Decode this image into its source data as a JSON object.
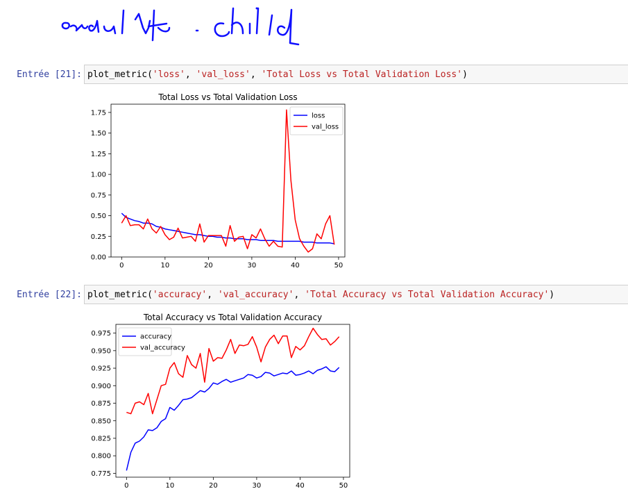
{
  "cells": [
    {
      "prompt": "Entrée [21]:",
      "code": {
        "fn": "plot_metric(",
        "args": [
          "'loss'",
          "'val_loss'",
          "'Total Loss vs Total Validation Loss'"
        ],
        "sep": ", ",
        "close": ")"
      }
    },
    {
      "prompt": "Entrée [22]:",
      "code": {
        "fn": "plot_metric(",
        "args": [
          "'accuracy'",
          "'val_accuracy'",
          "'Total Accuracy vs Total Validation Accuracy'"
        ],
        "sep": ", ",
        "close": ")"
      }
    }
  ],
  "chart_data": [
    {
      "type": "line",
      "title": "Total Loss vs Total Validation Loss",
      "xlabel": "",
      "ylabel": "",
      "xlim": [
        -2.45,
        51.45
      ],
      "ylim": [
        0.0,
        1.85
      ],
      "xticks": [
        0,
        10,
        20,
        30,
        40,
        50
      ],
      "yticks": [
        0.0,
        0.25,
        0.5,
        0.75,
        1.0,
        1.25,
        1.5,
        1.75
      ],
      "ytick_labels": [
        "0.00",
        "0.25",
        "0.50",
        "0.75",
        "1.00",
        "1.25",
        "1.50",
        "1.75"
      ],
      "legend_position": "top-right",
      "grid": false,
      "x": [
        0,
        1,
        2,
        3,
        4,
        5,
        6,
        7,
        8,
        9,
        10,
        11,
        12,
        13,
        14,
        15,
        16,
        17,
        18,
        19,
        20,
        21,
        22,
        23,
        24,
        25,
        26,
        27,
        28,
        29,
        30,
        31,
        32,
        33,
        34,
        35,
        36,
        37,
        38,
        39,
        40,
        41,
        42,
        43,
        44,
        45,
        46,
        47,
        48,
        49
      ],
      "series": [
        {
          "name": "loss",
          "color": "#0000ff",
          "values": [
            0.53,
            0.48,
            0.46,
            0.44,
            0.43,
            0.41,
            0.41,
            0.4,
            0.37,
            0.36,
            0.34,
            0.33,
            0.32,
            0.31,
            0.3,
            0.29,
            0.28,
            0.27,
            0.27,
            0.26,
            0.25,
            0.25,
            0.24,
            0.24,
            0.23,
            0.23,
            0.22,
            0.22,
            0.22,
            0.21,
            0.21,
            0.21,
            0.2,
            0.2,
            0.2,
            0.2,
            0.19,
            0.19,
            0.19,
            0.19,
            0.19,
            0.19,
            0.18,
            0.18,
            0.18,
            0.17,
            0.17,
            0.17,
            0.17,
            0.16
          ]
        },
        {
          "name": "val_loss",
          "color": "#ff0000",
          "values": [
            0.41,
            0.5,
            0.38,
            0.39,
            0.39,
            0.34,
            0.46,
            0.34,
            0.29,
            0.37,
            0.27,
            0.21,
            0.24,
            0.35,
            0.23,
            0.24,
            0.25,
            0.19,
            0.4,
            0.18,
            0.26,
            0.26,
            0.26,
            0.26,
            0.13,
            0.38,
            0.19,
            0.24,
            0.25,
            0.1,
            0.27,
            0.23,
            0.34,
            0.22,
            0.13,
            0.19,
            0.13,
            0.12,
            1.78,
            0.93,
            0.45,
            0.22,
            0.13,
            0.06,
            0.1,
            0.28,
            0.22,
            0.4,
            0.5,
            0.15
          ]
        }
      ]
    },
    {
      "type": "line",
      "title": "Total Accuracy vs Total Validation Accuracy",
      "xlabel": "",
      "ylabel": "",
      "xlim": [
        -2.45,
        51.45
      ],
      "ylim": [
        0.7695,
        0.9875
      ],
      "xticks": [
        0,
        10,
        20,
        30,
        40,
        50
      ],
      "yticks": [
        0.775,
        0.8,
        0.825,
        0.85,
        0.875,
        0.9,
        0.925,
        0.95,
        0.975
      ],
      "ytick_labels": [
        "0.775",
        "0.800",
        "0.825",
        "0.850",
        "0.875",
        "0.900",
        "0.925",
        "0.950",
        "0.975"
      ],
      "legend_position": "top-left",
      "grid": false,
      "x": [
        0,
        1,
        2,
        3,
        4,
        5,
        6,
        7,
        8,
        9,
        10,
        11,
        12,
        13,
        14,
        15,
        16,
        17,
        18,
        19,
        20,
        21,
        22,
        23,
        24,
        25,
        26,
        27,
        28,
        29,
        30,
        31,
        32,
        33,
        34,
        35,
        36,
        37,
        38,
        39,
        40,
        41,
        42,
        43,
        44,
        45,
        46,
        47,
        48,
        49
      ],
      "series": [
        {
          "name": "accuracy",
          "color": "#0000ff",
          "values": [
            0.779,
            0.805,
            0.818,
            0.821,
            0.827,
            0.837,
            0.836,
            0.84,
            0.849,
            0.853,
            0.869,
            0.865,
            0.872,
            0.88,
            0.881,
            0.883,
            0.888,
            0.893,
            0.891,
            0.896,
            0.904,
            0.902,
            0.906,
            0.909,
            0.905,
            0.907,
            0.909,
            0.911,
            0.916,
            0.915,
            0.911,
            0.913,
            0.919,
            0.918,
            0.914,
            0.916,
            0.918,
            0.917,
            0.921,
            0.915,
            0.916,
            0.918,
            0.921,
            0.917,
            0.922,
            0.924,
            0.927,
            0.921,
            0.92,
            0.926
          ]
        },
        {
          "name": "val_accuracy",
          "color": "#ff0000",
          "values": [
            0.862,
            0.86,
            0.875,
            0.877,
            0.873,
            0.889,
            0.86,
            0.88,
            0.9,
            0.902,
            0.925,
            0.933,
            0.917,
            0.912,
            0.943,
            0.93,
            0.925,
            0.946,
            0.905,
            0.953,
            0.935,
            0.94,
            0.939,
            0.951,
            0.966,
            0.946,
            0.958,
            0.957,
            0.959,
            0.97,
            0.955,
            0.934,
            0.955,
            0.966,
            0.972,
            0.96,
            0.971,
            0.971,
            0.94,
            0.956,
            0.951,
            0.957,
            0.97,
            0.982,
            0.973,
            0.966,
            0.967,
            0.958,
            0.963,
            0.97
          ]
        }
      ]
    }
  ]
}
